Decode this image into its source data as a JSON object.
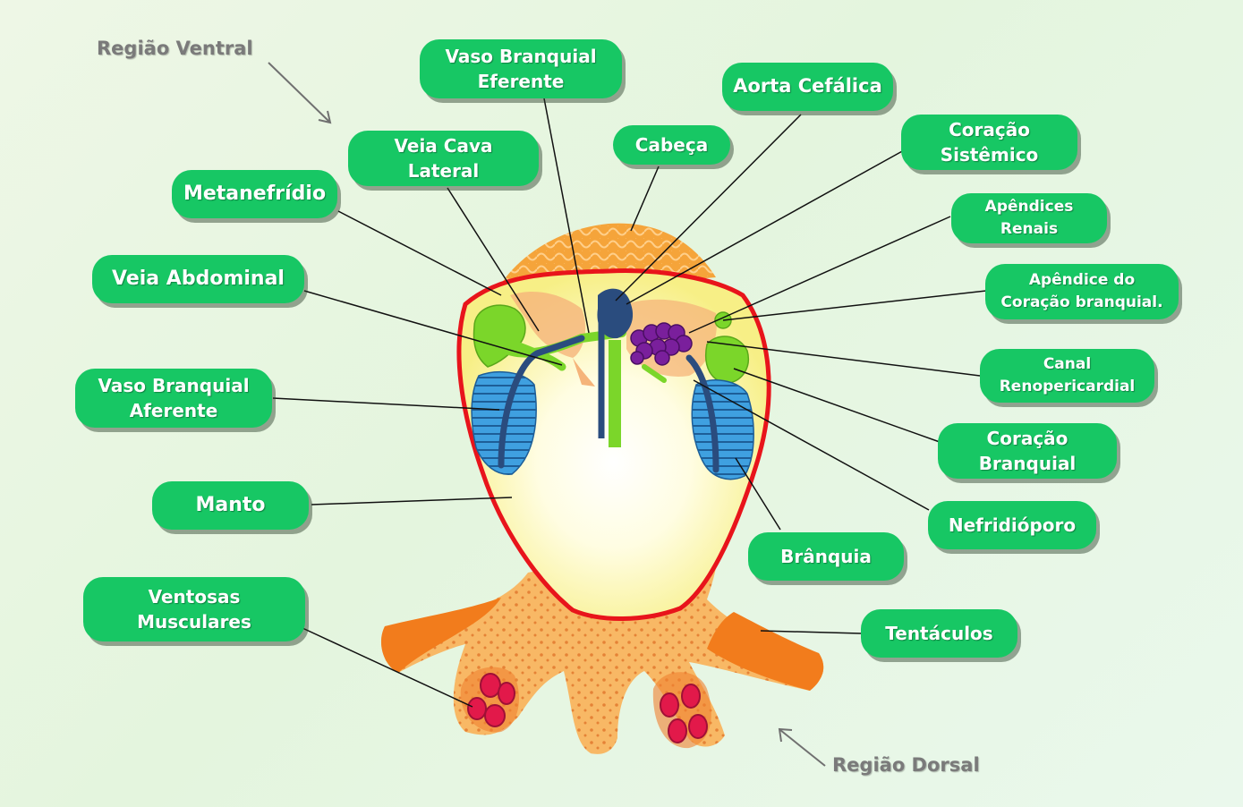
{
  "regions": {
    "ventral": "Região Ventral",
    "dorsal": "Região Dorsal"
  },
  "labels": {
    "vaso_branquial_eferente": "Vaso Branquial\nEferente",
    "aorta_cefalica": "Aorta Cefálica",
    "cabeca": "Cabeça",
    "coracao_sistemico": "Coração\nSistêmico",
    "veia_cava_lateral": "Veia Cava Lateral",
    "metanefridio": "Metanefrídio",
    "apendices_renais": "Apêndices\nRenais",
    "veia_abdominal": "Veia Abdominal",
    "apendice_coracao_branquial": "Apêndice do\nCoração branquial.",
    "canal_renopericardial": "Canal\nRenopericardial",
    "vaso_branquial_aferente": "Vaso Branquial\nAferente",
    "coracao_branquial": "Coração\nBranquial",
    "manto": "Manto",
    "nefridioporo": "Nefridióporo",
    "branquia": "Brânquia",
    "ventosas_musculares": "Ventosas\nMusculares",
    "tentaculos": "Tentáculos"
  },
  "colors": {
    "label_bg": "#17c764",
    "mantle_outline": "#e8141b",
    "body_orange": "#f8b865",
    "gill_blue": "#3fa0e0",
    "vessel_navy": "#2a4c7e",
    "kidney_green": "#7bd62a",
    "heart_purple": "#7a1f9c",
    "sucker_red": "#e2194a"
  }
}
